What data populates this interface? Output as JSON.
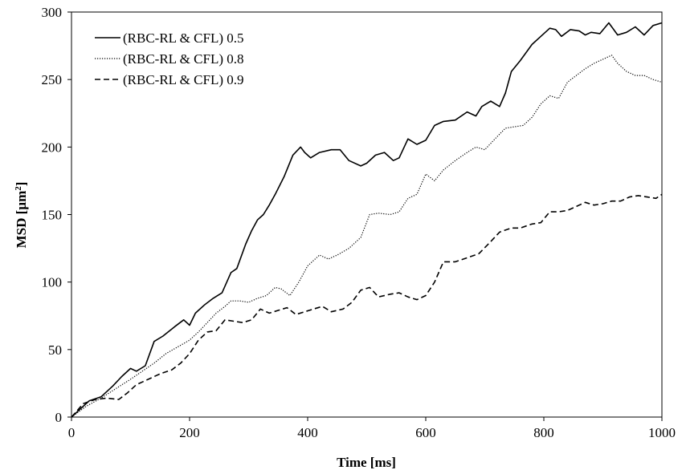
{
  "chart_data": {
    "type": "line",
    "title": "",
    "xlabel": "Time [ms]",
    "ylabel_main": "MSD [µm",
    "ylabel_sup": "2",
    "ylabel_end": "]",
    "xlim": [
      0,
      1000
    ],
    "ylim": [
      0,
      300
    ],
    "x_ticks": [
      "0",
      "200",
      "400",
      "600",
      "800",
      "1000"
    ],
    "y_ticks": [
      "0",
      "50",
      "100",
      "150",
      "200",
      "250",
      "300"
    ],
    "grid": false,
    "legend_position": "top-left",
    "series": [
      {
        "name": "(RBC-RL & CFL) 0.5",
        "style": "solid",
        "points": [
          [
            0,
            0
          ],
          [
            20,
            8
          ],
          [
            30,
            12
          ],
          [
            50,
            15
          ],
          [
            70,
            23
          ],
          [
            85,
            30
          ],
          [
            100,
            36
          ],
          [
            110,
            34
          ],
          [
            125,
            38
          ],
          [
            140,
            56
          ],
          [
            155,
            60
          ],
          [
            175,
            67
          ],
          [
            190,
            72
          ],
          [
            200,
            68
          ],
          [
            210,
            77
          ],
          [
            225,
            83
          ],
          [
            240,
            88
          ],
          [
            255,
            92
          ],
          [
            270,
            107
          ],
          [
            280,
            110
          ],
          [
            295,
            128
          ],
          [
            305,
            138
          ],
          [
            315,
            146
          ],
          [
            325,
            150
          ],
          [
            335,
            157
          ],
          [
            345,
            165
          ],
          [
            360,
            178
          ],
          [
            375,
            194
          ],
          [
            388,
            200
          ],
          [
            395,
            196
          ],
          [
            405,
            192
          ],
          [
            420,
            196
          ],
          [
            440,
            198
          ],
          [
            455,
            198
          ],
          [
            470,
            190
          ],
          [
            490,
            186
          ],
          [
            500,
            188
          ],
          [
            515,
            194
          ],
          [
            530,
            196
          ],
          [
            545,
            190
          ],
          [
            555,
            192
          ],
          [
            570,
            206
          ],
          [
            585,
            202
          ],
          [
            600,
            205
          ],
          [
            615,
            216
          ],
          [
            630,
            219
          ],
          [
            650,
            220
          ],
          [
            670,
            226
          ],
          [
            685,
            223
          ],
          [
            695,
            230
          ],
          [
            710,
            234
          ],
          [
            725,
            230
          ],
          [
            735,
            240
          ],
          [
            745,
            256
          ],
          [
            760,
            264
          ],
          [
            780,
            276
          ],
          [
            795,
            282
          ],
          [
            810,
            288
          ],
          [
            820,
            287
          ],
          [
            830,
            282
          ],
          [
            845,
            287
          ],
          [
            860,
            286
          ],
          [
            870,
            283
          ],
          [
            880,
            285
          ],
          [
            895,
            284
          ],
          [
            910,
            292
          ],
          [
            925,
            283
          ],
          [
            940,
            285
          ],
          [
            955,
            289
          ],
          [
            970,
            283
          ],
          [
            985,
            290
          ],
          [
            1000,
            292
          ]
        ]
      },
      {
        "name": "(RBC-RL & CFL) 0.8",
        "style": "dotted",
        "points": [
          [
            0,
            0
          ],
          [
            25,
            8
          ],
          [
            50,
            14
          ],
          [
            75,
            21
          ],
          [
            100,
            28
          ],
          [
            120,
            34
          ],
          [
            140,
            40
          ],
          [
            160,
            47
          ],
          [
            180,
            52
          ],
          [
            200,
            57
          ],
          [
            215,
            63
          ],
          [
            230,
            70
          ],
          [
            245,
            77
          ],
          [
            260,
            82
          ],
          [
            270,
            86
          ],
          [
            285,
            86
          ],
          [
            300,
            85
          ],
          [
            315,
            88
          ],
          [
            330,
            90
          ],
          [
            345,
            96
          ],
          [
            355,
            95
          ],
          [
            370,
            90
          ],
          [
            385,
            100
          ],
          [
            400,
            112
          ],
          [
            420,
            120
          ],
          [
            435,
            117
          ],
          [
            450,
            120
          ],
          [
            470,
            125
          ],
          [
            490,
            133
          ],
          [
            505,
            150
          ],
          [
            520,
            151
          ],
          [
            540,
            150
          ],
          [
            555,
            152
          ],
          [
            570,
            162
          ],
          [
            585,
            165
          ],
          [
            600,
            180
          ],
          [
            615,
            175
          ],
          [
            630,
            183
          ],
          [
            650,
            190
          ],
          [
            670,
            196
          ],
          [
            685,
            200
          ],
          [
            700,
            198
          ],
          [
            715,
            205
          ],
          [
            735,
            214
          ],
          [
            750,
            215
          ],
          [
            765,
            216
          ],
          [
            780,
            222
          ],
          [
            795,
            232
          ],
          [
            810,
            238
          ],
          [
            825,
            236
          ],
          [
            840,
            248
          ],
          [
            855,
            253
          ],
          [
            870,
            258
          ],
          [
            885,
            262
          ],
          [
            900,
            265
          ],
          [
            915,
            268
          ],
          [
            925,
            262
          ],
          [
            940,
            256
          ],
          [
            955,
            253
          ],
          [
            970,
            253
          ],
          [
            985,
            250
          ],
          [
            1000,
            248
          ]
        ]
      },
      {
        "name": "(RBC-RL & CFL) 0.9",
        "style": "dashed",
        "points": [
          [
            0,
            0
          ],
          [
            20,
            10
          ],
          [
            40,
            13
          ],
          [
            60,
            14
          ],
          [
            80,
            13
          ],
          [
            95,
            18
          ],
          [
            110,
            24
          ],
          [
            130,
            28
          ],
          [
            150,
            32
          ],
          [
            170,
            35
          ],
          [
            185,
            40
          ],
          [
            200,
            47
          ],
          [
            215,
            57
          ],
          [
            230,
            63
          ],
          [
            245,
            64
          ],
          [
            260,
            72
          ],
          [
            275,
            71
          ],
          [
            290,
            70
          ],
          [
            305,
            72
          ],
          [
            320,
            80
          ],
          [
            335,
            77
          ],
          [
            350,
            79
          ],
          [
            365,
            81
          ],
          [
            380,
            76
          ],
          [
            395,
            78
          ],
          [
            410,
            80
          ],
          [
            425,
            82
          ],
          [
            440,
            78
          ],
          [
            460,
            80
          ],
          [
            475,
            85
          ],
          [
            490,
            94
          ],
          [
            505,
            96
          ],
          [
            520,
            89
          ],
          [
            540,
            91
          ],
          [
            555,
            92
          ],
          [
            570,
            89
          ],
          [
            585,
            87
          ],
          [
            600,
            90
          ],
          [
            615,
            100
          ],
          [
            630,
            115
          ],
          [
            650,
            115
          ],
          [
            670,
            118
          ],
          [
            690,
            121
          ],
          [
            710,
            130
          ],
          [
            725,
            137
          ],
          [
            745,
            140
          ],
          [
            760,
            140
          ],
          [
            780,
            143
          ],
          [
            795,
            144
          ],
          [
            810,
            152
          ],
          [
            825,
            152
          ],
          [
            840,
            153
          ],
          [
            855,
            156
          ],
          [
            870,
            159
          ],
          [
            885,
            157
          ],
          [
            900,
            158
          ],
          [
            915,
            160
          ],
          [
            930,
            160
          ],
          [
            945,
            163
          ],
          [
            960,
            164
          ],
          [
            975,
            163
          ],
          [
            990,
            162
          ],
          [
            1000,
            165
          ]
        ]
      }
    ]
  }
}
